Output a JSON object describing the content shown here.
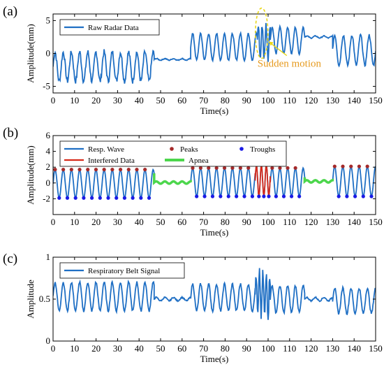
{
  "colors": {
    "signal": "#1f6fc4",
    "interfered": "#d62a1a",
    "apnea": "#4cd64c",
    "peaks": "#a52a2a",
    "troughs": "#1a1ae6",
    "highlight": "#e8d61a",
    "annotation": "#e69a1e"
  },
  "chart_data": [
    {
      "type": "line",
      "panel": "(a)",
      "xlabel": "Time(s)",
      "ylabel": "Amplitude(mm)",
      "xlim": [
        0,
        150
      ],
      "ylim": [
        -6,
        6
      ],
      "xticks": [
        "0",
        "10",
        "20",
        "30",
        "40",
        "50",
        "60",
        "70",
        "80",
        "90",
        "100",
        "110",
        "120",
        "130",
        "140",
        "150"
      ],
      "yticks": [
        "-5",
        "0",
        "5"
      ],
      "legend": {
        "position": "top-left",
        "entries": [
          {
            "name": "Raw Radar Data",
            "color": "signal"
          }
        ]
      },
      "annotation": {
        "text": "Sudden motion",
        "target_x": 97,
        "target_y": 3.5
      },
      "segments": [
        {
          "start": 0,
          "end": 47,
          "period": 3.8,
          "amplitude": 2.2,
          "offset": -2.0,
          "noise": 0.6
        },
        {
          "start": 47,
          "end": 64,
          "period": 4.0,
          "amplitude": 0.12,
          "offset": -0.9,
          "noise": 0.1
        },
        {
          "start": 64,
          "end": 95,
          "period": 3.7,
          "amplitude": 2.0,
          "offset": 1.0,
          "noise": 0.2
        },
        {
          "start": 95,
          "end": 101,
          "period": 1.8,
          "amplitude": 2.6,
          "offset": 1.8,
          "noise": 0.8
        },
        {
          "start": 101,
          "end": 117,
          "period": 3.6,
          "amplitude": 2.0,
          "offset": 2.0,
          "noise": 0.2
        },
        {
          "start": 117,
          "end": 130,
          "period": 4.0,
          "amplitude": 0.15,
          "offset": 2.5,
          "noise": 0.1
        },
        {
          "start": 130,
          "end": 150,
          "period": 4.0,
          "amplitude": 2.3,
          "offset": 0.5,
          "noise": 0.3
        }
      ]
    },
    {
      "type": "line",
      "panel": "(b)",
      "xlabel": "Time(s)",
      "ylabel": "Amplitude(mm)",
      "xlim": [
        0,
        150
      ],
      "ylim": [
        -4,
        6
      ],
      "xticks": [
        "0",
        "10",
        "20",
        "30",
        "40",
        "50",
        "60",
        "70",
        "80",
        "90",
        "100",
        "110",
        "120",
        "130",
        "140",
        "150"
      ],
      "yticks": [
        "-2",
        "0",
        "2",
        "4",
        "6"
      ],
      "legend": {
        "position": "top",
        "entries": [
          {
            "name": "Resp. Wave",
            "color": "signal",
            "kind": "line"
          },
          {
            "name": "Peaks",
            "color": "peaks",
            "kind": "marker"
          },
          {
            "name": "Troughs",
            "color": "troughs",
            "kind": "marker"
          },
          {
            "name": "Interfered Data",
            "color": "interfered",
            "kind": "line"
          },
          {
            "name": "Apnea",
            "color": "apnea",
            "kind": "thick-line"
          }
        ]
      },
      "segments": [
        {
          "start": 0,
          "end": 47,
          "period": 3.8,
          "amplitude": 1.8,
          "offset": -0.1,
          "kind": "normal"
        },
        {
          "start": 47,
          "end": 64,
          "period": 4.0,
          "amplitude": 0.15,
          "offset": 0.05,
          "kind": "apnea"
        },
        {
          "start": 64,
          "end": 94,
          "period": 3.7,
          "amplitude": 1.8,
          "offset": 0.1,
          "kind": "normal"
        },
        {
          "start": 94,
          "end": 101,
          "period": 2.3,
          "amplitude": 2.0,
          "offset": 0.3,
          "kind": "interfered"
        },
        {
          "start": 101,
          "end": 117,
          "period": 3.6,
          "amplitude": 1.8,
          "offset": 0.1,
          "kind": "normal"
        },
        {
          "start": 117,
          "end": 130,
          "period": 4.0,
          "amplitude": 0.15,
          "offset": 0.2,
          "kind": "apnea"
        },
        {
          "start": 130,
          "end": 150,
          "period": 3.8,
          "amplitude": 1.9,
          "offset": 0.2,
          "kind": "normal"
        }
      ]
    },
    {
      "type": "line",
      "panel": "(c)",
      "xlabel": "Time(s)",
      "ylabel": "Amplitude",
      "xlim": [
        0,
        150
      ],
      "ylim": [
        0,
        1
      ],
      "xticks": [
        "0",
        "10",
        "20",
        "30",
        "40",
        "50",
        "60",
        "70",
        "80",
        "90",
        "100",
        "110",
        "120",
        "130",
        "140",
        "150"
      ],
      "yticks": [
        "0",
        "0.5",
        "1"
      ],
      "legend": {
        "position": "top-left",
        "entries": [
          {
            "name": "Respiratory Belt Signal",
            "color": "signal"
          }
        ]
      },
      "segments": [
        {
          "start": 0,
          "end": 47,
          "period": 3.8,
          "amplitude": 0.17,
          "offset": 0.53,
          "noise": 0.02
        },
        {
          "start": 47,
          "end": 64,
          "period": 4.0,
          "amplitude": 0.02,
          "offset": 0.5,
          "noise": 0.01
        },
        {
          "start": 64,
          "end": 94,
          "period": 3.7,
          "amplitude": 0.16,
          "offset": 0.52,
          "noise": 0.02
        },
        {
          "start": 94,
          "end": 101,
          "period": 1.6,
          "amplitude": 0.25,
          "offset": 0.55,
          "noise": 0.1
        },
        {
          "start": 101,
          "end": 117,
          "period": 3.6,
          "amplitude": 0.16,
          "offset": 0.5,
          "noise": 0.02
        },
        {
          "start": 117,
          "end": 130,
          "period": 4.0,
          "amplitude": 0.02,
          "offset": 0.5,
          "noise": 0.01
        },
        {
          "start": 130,
          "end": 150,
          "period": 3.8,
          "amplitude": 0.15,
          "offset": 0.48,
          "noise": 0.02
        }
      ]
    }
  ]
}
